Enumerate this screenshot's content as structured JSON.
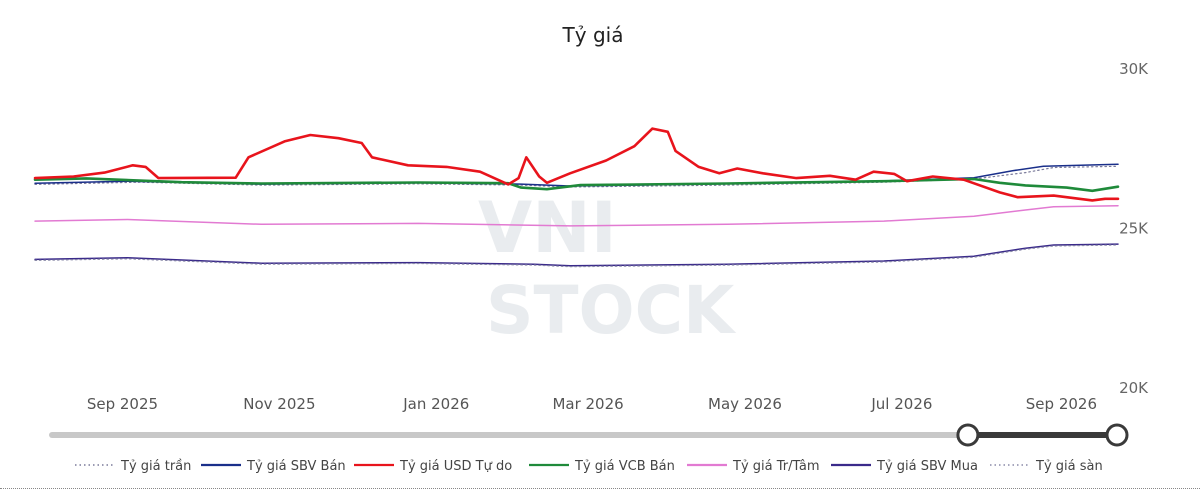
{
  "chart_data": {
    "type": "line",
    "title": "Tỷ giá",
    "xlabel": "",
    "ylabel": "",
    "x_range": [
      "2025-08-05",
      "2026-09-30"
    ],
    "ylim": [
      20000,
      30000
    ],
    "y_ticks": [
      {
        "value": 30000,
        "label": "30K"
      },
      {
        "value": 25000,
        "label": "25K"
      },
      {
        "value": 20000,
        "label": "20K"
      }
    ],
    "x_ticks": [
      {
        "date": "2025-09-01",
        "label": "Sep 2025"
      },
      {
        "date": "2025-11-01",
        "label": "Nov 2025"
      },
      {
        "date": "2026-01-01",
        "label": "Jan 2026"
      },
      {
        "date": "2026-03-01",
        "label": "Mar 2026"
      },
      {
        "date": "2026-05-01",
        "label": "May 2026"
      },
      {
        "date": "2026-07-01",
        "label": "Jul 2026"
      },
      {
        "date": "2026-09-01",
        "label": "Sep 2026"
      }
    ],
    "grid": false,
    "legend_position": "bottom",
    "series": [
      {
        "name": "Tỷ giá trần",
        "color": "#7a7a9a",
        "style": "dotted",
        "width": 1.2,
        "points": [
          [
            "2025-08-05",
            26350
          ],
          [
            "2025-09-15",
            26420
          ],
          [
            "2025-11-01",
            26330
          ],
          [
            "2026-01-01",
            26370
          ],
          [
            "2026-02-10",
            26330
          ],
          [
            "2026-03-01",
            26270
          ],
          [
            "2026-05-01",
            26330
          ],
          [
            "2026-07-01",
            26420
          ],
          [
            "2026-08-05",
            26520
          ],
          [
            "2026-08-25",
            26720
          ],
          [
            "2026-09-05",
            26880
          ],
          [
            "2026-09-30",
            26920
          ]
        ]
      },
      {
        "name": "Tỷ giá SBV Bán",
        "color": "#1a2f8a",
        "style": "solid",
        "width": 1.5,
        "points": [
          [
            "2025-08-05",
            26390
          ],
          [
            "2025-09-10",
            26450
          ],
          [
            "2025-11-01",
            26360
          ],
          [
            "2026-01-01",
            26400
          ],
          [
            "2026-02-10",
            26360
          ],
          [
            "2026-03-01",
            26300
          ],
          [
            "2026-05-01",
            26370
          ],
          [
            "2026-07-01",
            26460
          ],
          [
            "2026-08-05",
            26560
          ],
          [
            "2026-08-20",
            26780
          ],
          [
            "2026-09-01",
            26920
          ],
          [
            "2026-09-30",
            26980
          ]
        ]
      },
      {
        "name": "Tỷ giá USD Tự do",
        "color": "#e8141c",
        "style": "solid",
        "width": 2.6,
        "points": [
          [
            "2025-08-05",
            26550
          ],
          [
            "2025-08-20",
            26600
          ],
          [
            "2025-09-01",
            26720
          ],
          [
            "2025-09-12",
            26950
          ],
          [
            "2025-09-17",
            26900
          ],
          [
            "2025-09-22",
            26550
          ],
          [
            "2025-10-22",
            26560
          ],
          [
            "2025-10-27",
            27200
          ],
          [
            "2025-11-10",
            27700
          ],
          [
            "2025-11-20",
            27900
          ],
          [
            "2025-12-01",
            27800
          ],
          [
            "2025-12-10",
            27650
          ],
          [
            "2025-12-14",
            27200
          ],
          [
            "2025-12-28",
            26950
          ],
          [
            "2026-01-12",
            26900
          ],
          [
            "2026-01-25",
            26750
          ],
          [
            "2026-02-05",
            26350
          ],
          [
            "2026-02-09",
            26550
          ],
          [
            "2026-02-12",
            27200
          ],
          [
            "2026-02-17",
            26600
          ],
          [
            "2026-02-20",
            26400
          ],
          [
            "2026-03-01",
            26700
          ],
          [
            "2026-03-15",
            27100
          ],
          [
            "2026-03-26",
            27550
          ],
          [
            "2026-04-02",
            28100
          ],
          [
            "2026-04-08",
            28000
          ],
          [
            "2026-04-11",
            27400
          ],
          [
            "2026-04-20",
            26900
          ],
          [
            "2026-04-28",
            26700
          ],
          [
            "2026-05-05",
            26850
          ],
          [
            "2026-05-15",
            26700
          ],
          [
            "2026-05-28",
            26550
          ],
          [
            "2026-06-10",
            26620
          ],
          [
            "2026-06-20",
            26500
          ],
          [
            "2026-06-27",
            26750
          ],
          [
            "2026-07-05",
            26680
          ],
          [
            "2026-07-10",
            26450
          ],
          [
            "2026-07-20",
            26600
          ],
          [
            "2026-08-01",
            26500
          ],
          [
            "2026-08-15",
            26100
          ],
          [
            "2026-08-22",
            25950
          ],
          [
            "2026-09-05",
            26000
          ],
          [
            "2026-09-20",
            25850
          ],
          [
            "2026-09-25",
            25900
          ],
          [
            "2026-09-30",
            25900
          ]
        ]
      },
      {
        "name": "Tỷ giá VCB Bán",
        "color": "#1f8a3a",
        "style": "solid",
        "width": 2.6,
        "points": [
          [
            "2025-08-05",
            26500
          ],
          [
            "2025-08-25",
            26540
          ],
          [
            "2025-10-01",
            26420
          ],
          [
            "2025-11-01",
            26380
          ],
          [
            "2026-01-01",
            26410
          ],
          [
            "2026-02-05",
            26390
          ],
          [
            "2026-02-10",
            26250
          ],
          [
            "2026-02-20",
            26200
          ],
          [
            "2026-03-05",
            26330
          ],
          [
            "2026-05-01",
            26380
          ],
          [
            "2026-07-01",
            26450
          ],
          [
            "2026-08-05",
            26520
          ],
          [
            "2026-08-15",
            26400
          ],
          [
            "2026-08-25",
            26320
          ],
          [
            "2026-09-10",
            26250
          ],
          [
            "2026-09-20",
            26150
          ],
          [
            "2026-09-30",
            26280
          ]
        ]
      },
      {
        "name": "Tỷ giá Tr/Tâm",
        "color": "#e27ad2",
        "style": "solid",
        "width": 1.5,
        "points": [
          [
            "2025-08-05",
            25200
          ],
          [
            "2025-09-10",
            25250
          ],
          [
            "2025-11-01",
            25100
          ],
          [
            "2026-01-01",
            25130
          ],
          [
            "2026-03-01",
            25050
          ],
          [
            "2026-05-01",
            25100
          ],
          [
            "2026-07-01",
            25200
          ],
          [
            "2026-08-05",
            25350
          ],
          [
            "2026-08-25",
            25550
          ],
          [
            "2026-09-05",
            25650
          ],
          [
            "2026-09-30",
            25680
          ]
        ]
      },
      {
        "name": "Tỷ giá SBV Mua",
        "color": "#3a2a8a",
        "style": "solid",
        "width": 1.5,
        "points": [
          [
            "2025-08-05",
            24000
          ],
          [
            "2025-09-10",
            24050
          ],
          [
            "2025-11-01",
            23880
          ],
          [
            "2026-01-01",
            23900
          ],
          [
            "2026-02-15",
            23850
          ],
          [
            "2026-03-01",
            23800
          ],
          [
            "2026-05-01",
            23850
          ],
          [
            "2026-07-01",
            23950
          ],
          [
            "2026-08-05",
            24100
          ],
          [
            "2026-08-25",
            24350
          ],
          [
            "2026-09-05",
            24450
          ],
          [
            "2026-09-30",
            24480
          ]
        ]
      },
      {
        "name": "Tỷ giá sàn",
        "color": "#8a8aa8",
        "style": "dotted",
        "width": 1.2,
        "points": [
          [
            "2025-08-05",
            23970
          ],
          [
            "2025-09-10",
            24020
          ],
          [
            "2025-11-01",
            23850
          ],
          [
            "2026-01-01",
            23870
          ],
          [
            "2026-02-15",
            23820
          ],
          [
            "2026-03-01",
            23770
          ],
          [
            "2026-05-01",
            23820
          ],
          [
            "2026-07-01",
            23920
          ],
          [
            "2026-08-05",
            24070
          ],
          [
            "2026-08-25",
            24320
          ],
          [
            "2026-09-05",
            24420
          ],
          [
            "2026-09-30",
            24450
          ]
        ]
      }
    ]
  },
  "watermark": {
    "line1": "VNI",
    "line2": "STOCK"
  },
  "slider": {
    "track_color": "#c8c8c8",
    "selected_color": "#3a3a3a",
    "handle_start_fraction": 0.86,
    "handle_end_fraction": 1.0
  }
}
